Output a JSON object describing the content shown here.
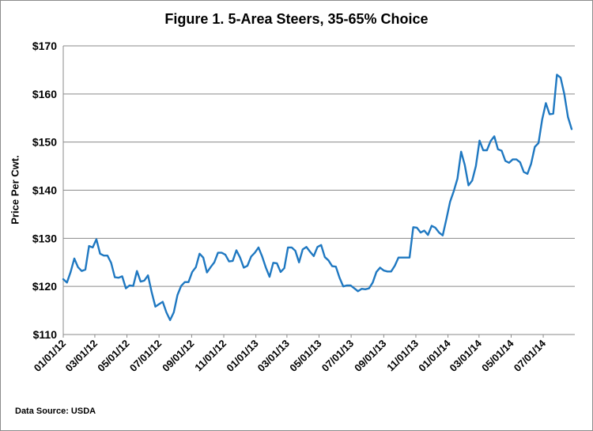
{
  "chart_data": {
    "type": "line",
    "title": "Figure 1.  5-Area Steers, 35-65%  Choice",
    "ylabel": "Price Per Cwt.",
    "xlabel": "",
    "source": "Data Source:  USDA",
    "ylim": [
      110,
      170
    ],
    "y_ticks": [
      "$110",
      "$120",
      "$130",
      "$140",
      "$150",
      "$160",
      "$170"
    ],
    "y_tick_values": [
      110,
      120,
      130,
      140,
      150,
      160,
      170
    ],
    "x_ticks": [
      "01/01/12",
      "03/01/12",
      "05/01/12",
      "07/01/12",
      "09/01/12",
      "11/01/12",
      "01/01/13",
      "03/01/13",
      "05/01/13",
      "07/01/13",
      "09/01/13",
      "11/01/13",
      "01/01/14",
      "03/01/14",
      "05/01/14",
      "07/01/14"
    ],
    "x_week_start": "01/01/12",
    "grid": "horizontal",
    "series": [
      {
        "color": "#1f78c1",
        "values": [
          121.5,
          120.8,
          123.0,
          125.8,
          124.0,
          123.2,
          123.5,
          128.4,
          128.1,
          129.8,
          126.8,
          126.4,
          126.4,
          124.9,
          121.9,
          121.8,
          122.1,
          119.6,
          120.2,
          120.1,
          123.2,
          121.0,
          121.2,
          122.3,
          118.8,
          115.8,
          116.3,
          116.8,
          114.6,
          113.0,
          114.6,
          118.2,
          120.1,
          120.9,
          120.9,
          123.0,
          124.0,
          126.8,
          126.0,
          122.9,
          124.0,
          125.0,
          127.0,
          127.0,
          126.6,
          125.2,
          125.3,
          127.5,
          126.0,
          123.9,
          124.3,
          126.2,
          127.0,
          128.1,
          126.2,
          123.9,
          122.0,
          124.9,
          124.8,
          123.0,
          123.8,
          128.1,
          128.1,
          127.4,
          125.0,
          127.7,
          128.2,
          127.2,
          126.3,
          128.2,
          128.6,
          126.1,
          125.4,
          124.2,
          124.1,
          121.8,
          120.0,
          120.2,
          120.2,
          119.6,
          119.0,
          119.5,
          119.4,
          119.6,
          120.8,
          123.0,
          123.9,
          123.3,
          123.1,
          123.1,
          124.3,
          126.0,
          126.0,
          126.0,
          126.0,
          132.3,
          132.2,
          131.2,
          131.6,
          130.7,
          132.6,
          132.2,
          131.2,
          130.6,
          134.0,
          137.6,
          139.8,
          142.4,
          148.0,
          145.2,
          141.0,
          142.0,
          145.0,
          150.3,
          148.3,
          148.3,
          150.2,
          151.2,
          148.5,
          148.2,
          146.1,
          145.7,
          146.4,
          146.4,
          145.8,
          143.8,
          143.4,
          145.5,
          149.0,
          149.8,
          154.7,
          158.1,
          155.8,
          155.9,
          164.0,
          163.4,
          160.0,
          155.2,
          152.7
        ]
      }
    ]
  }
}
